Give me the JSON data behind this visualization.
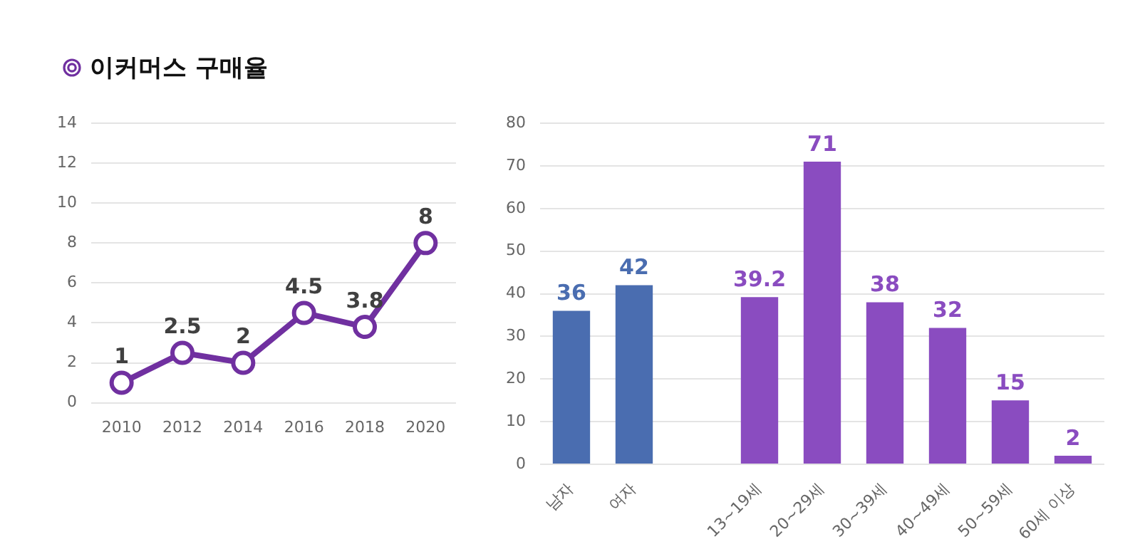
{
  "chart_data": [
    {
      "type": "line",
      "title": "이커머스 구매율",
      "categories": [
        "2010",
        "2012",
        "2014",
        "2016",
        "2018",
        "2020"
      ],
      "values": [
        1,
        2.5,
        2,
        4.5,
        3.8,
        8
      ],
      "color": "#7030a0",
      "ylim": [
        0,
        14
      ],
      "yticks": [
        0,
        2,
        4,
        6,
        8,
        10,
        12,
        14
      ],
      "grid": "y",
      "marker": "circle",
      "data_labels": true,
      "legend": false
    },
    {
      "type": "bar",
      "categories": [
        "남자",
        "여자",
        null,
        "13~19세",
        "20~29세",
        "30~39세",
        "40~49세",
        "50~59세",
        "60세 이상"
      ],
      "values": [
        36,
        42,
        null,
        39.2,
        71,
        38,
        32,
        15,
        2
      ],
      "colors": [
        "#4a6db0",
        "#4a6db0",
        null,
        "#8a4cc0",
        "#8a4cc0",
        "#8a4cc0",
        "#8a4cc0",
        "#8a4cc0",
        "#8a4cc0"
      ],
      "ylim": [
        0,
        80
      ],
      "yticks": [
        0,
        10,
        20,
        30,
        40,
        50,
        60,
        70,
        80
      ],
      "grid": "y",
      "data_labels": true,
      "legend": false
    }
  ]
}
